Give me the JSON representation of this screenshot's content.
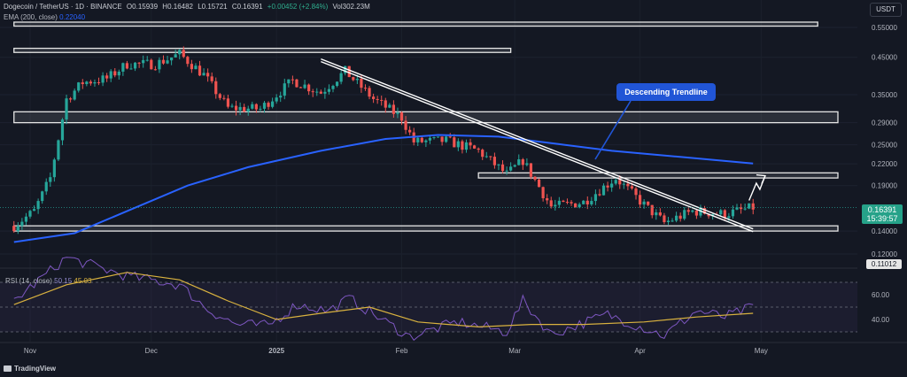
{
  "header": {
    "symbol": "Dogecoin / TetherUS · 1D · BINANCE",
    "open": "O0.15939",
    "high": "H0.16482",
    "low": "L0.15721",
    "close": "C0.16391",
    "change": "+0.00452 (+2.84%)",
    "volume": "Vol302.23M"
  },
  "ema_legend": {
    "label": "EMA (200, close)",
    "value": "0.22040"
  },
  "rsi_legend": {
    "label": "RSI (14, close)",
    "value1": "50.15",
    "value2": "45.03"
  },
  "currency_label": "USDT",
  "annotation": {
    "text": "Descending Trendline"
  },
  "current_price": {
    "price": "0.16391",
    "countdown": "15:39:57"
  },
  "branding": {
    "name": "TradingView"
  },
  "colors": {
    "background": "#141823",
    "up": "#26a69a",
    "down": "#ef5350",
    "ema": "#2962ff",
    "rsi": "#7e57c2",
    "rsi_ma": "#d9b23f",
    "callout": "#2155d6"
  },
  "chart_data": {
    "type": "candlestick",
    "price_scale": "log",
    "price_ticks": [
      0.55,
      0.45,
      0.35,
      0.29,
      0.25,
      0.22,
      0.19,
      0.14,
      0.12
    ],
    "x_ticks": [
      "Nov",
      "Dec",
      "2025",
      "Feb",
      "Mar",
      "Apr",
      "May"
    ],
    "rsi_ticks": [
      60,
      40
    ],
    "rsi_levels": [
      70,
      50,
      30
    ],
    "rsi_last": 50.15,
    "rsi_ma_last": 45.03,
    "ema_200_last": 0.2204,
    "current_price": 0.16391,
    "zones": [
      {
        "price_low": 0.555,
        "price_high": 0.57,
        "from": "Oct 28",
        "to": "May 15"
      },
      {
        "price_low": 0.465,
        "price_high": 0.478,
        "from": "Oct 28",
        "to": "Feb 28"
      },
      {
        "price_low": 0.29,
        "price_high": 0.312,
        "from": "Oct 28",
        "to": "May 20"
      },
      {
        "price_low": 0.2,
        "price_high": 0.207,
        "from": "Feb 20",
        "to": "May 20"
      },
      {
        "price_low": 0.14,
        "price_high": 0.145,
        "from": "Oct 28",
        "to": "May 20"
      }
    ],
    "trendline": {
      "from": {
        "date": "Jan 12",
        "price": 0.445
      },
      "to": {
        "date": "Apr 29",
        "price": 0.142
      }
    },
    "projection_arrow": {
      "from": {
        "date": "Apr 28",
        "price": 0.172
      },
      "to": {
        "date": "May 2",
        "price": 0.203
      }
    },
    "ema_200": [
      {
        "date": "Oct 28",
        "value": 0.13
      },
      {
        "date": "Nov 12",
        "value": 0.138
      },
      {
        "date": "Nov 25",
        "value": 0.16
      },
      {
        "date": "Dec 10",
        "value": 0.19
      },
      {
        "date": "Dec 25",
        "value": 0.215
      },
      {
        "date": "Jan 12",
        "value": 0.24
      },
      {
        "date": "Jan 28",
        "value": 0.26
      },
      {
        "date": "Feb 10",
        "value": 0.267
      },
      {
        "date": "Feb 25",
        "value": 0.264
      },
      {
        "date": "Mar 12",
        "value": 0.251
      },
      {
        "date": "Mar 25",
        "value": 0.24
      },
      {
        "date": "Apr 10",
        "value": 0.231
      },
      {
        "date": "Apr 29",
        "value": 0.2204
      }
    ],
    "price_path": [
      {
        "date": "Oct 28",
        "value": 0.145
      },
      {
        "date": "Nov 2",
        "value": 0.16
      },
      {
        "date": "Nov 6",
        "value": 0.2
      },
      {
        "date": "Nov 10",
        "value": 0.34
      },
      {
        "date": "Nov 14",
        "value": 0.38
      },
      {
        "date": "Nov 20",
        "value": 0.39
      },
      {
        "date": "Nov 25",
        "value": 0.43
      },
      {
        "date": "Dec 2",
        "value": 0.43
      },
      {
        "date": "Dec 8",
        "value": 0.46
      },
      {
        "date": "Dec 14",
        "value": 0.4
      },
      {
        "date": "Dec 20",
        "value": 0.32
      },
      {
        "date": "Dec 28",
        "value": 0.318
      },
      {
        "date": "Jan 5",
        "value": 0.385
      },
      {
        "date": "Jan 12",
        "value": 0.355
      },
      {
        "date": "Jan 18",
        "value": 0.41
      },
      {
        "date": "Jan 25",
        "value": 0.34
      },
      {
        "date": "Feb 1",
        "value": 0.3
      },
      {
        "date": "Feb 4",
        "value": 0.255
      },
      {
        "date": "Feb 12",
        "value": 0.257
      },
      {
        "date": "Feb 20",
        "value": 0.24
      },
      {
        "date": "Feb 27",
        "value": 0.205
      },
      {
        "date": "Mar 3",
        "value": 0.225
      },
      {
        "date": "Mar 10",
        "value": 0.165
      },
      {
        "date": "Mar 18",
        "value": 0.17
      },
      {
        "date": "Mar 26",
        "value": 0.2
      },
      {
        "date": "Apr 2",
        "value": 0.167
      },
      {
        "date": "Apr 7",
        "value": 0.148
      },
      {
        "date": "Apr 14",
        "value": 0.16
      },
      {
        "date": "Apr 22",
        "value": 0.157
      },
      {
        "date": "Apr 29",
        "value": 0.164
      }
    ],
    "rsi_series": [
      {
        "date": "Oct 28",
        "value": 55
      },
      {
        "date": "Nov 10",
        "value": 90
      },
      {
        "date": "Nov 25",
        "value": 75
      },
      {
        "date": "Dec 8",
        "value": 68
      },
      {
        "date": "Dec 15",
        "value": 48
      },
      {
        "date": "Dec 22",
        "value": 36
      },
      {
        "date": "Dec 30",
        "value": 35
      },
      {
        "date": "Jan 6",
        "value": 52
      },
      {
        "date": "Jan 14",
        "value": 47
      },
      {
        "date": "Jan 19",
        "value": 57
      },
      {
        "date": "Jan 28",
        "value": 38
      },
      {
        "date": "Feb 3",
        "value": 26
      },
      {
        "date": "Feb 15",
        "value": 38
      },
      {
        "date": "Feb 27",
        "value": 30
      },
      {
        "date": "Mar 3",
        "value": 55
      },
      {
        "date": "Mar 10",
        "value": 28
      },
      {
        "date": "Mar 24",
        "value": 44
      },
      {
        "date": "Apr 7",
        "value": 27
      },
      {
        "date": "Apr 15",
        "value": 47
      },
      {
        "date": "Apr 22",
        "value": 42
      },
      {
        "date": "Apr 29",
        "value": 50
      }
    ],
    "rsi_ma_series": [
      {
        "date": "Oct 28",
        "value": 52
      },
      {
        "date": "Nov 10",
        "value": 68
      },
      {
        "date": "Nov 25",
        "value": 78
      },
      {
        "date": "Dec 8",
        "value": 72
      },
      {
        "date": "Dec 20",
        "value": 55
      },
      {
        "date": "Jan 1",
        "value": 40
      },
      {
        "date": "Jan 12",
        "value": 45
      },
      {
        "date": "Jan 24",
        "value": 50
      },
      {
        "date": "Feb 5",
        "value": 38
      },
      {
        "date": "Feb 20",
        "value": 34
      },
      {
        "date": "Mar 5",
        "value": 36
      },
      {
        "date": "Mar 18",
        "value": 36
      },
      {
        "date": "Apr 2",
        "value": 38
      },
      {
        "date": "Apr 15",
        "value": 42
      },
      {
        "date": "Apr 29",
        "value": 45
      }
    ]
  }
}
